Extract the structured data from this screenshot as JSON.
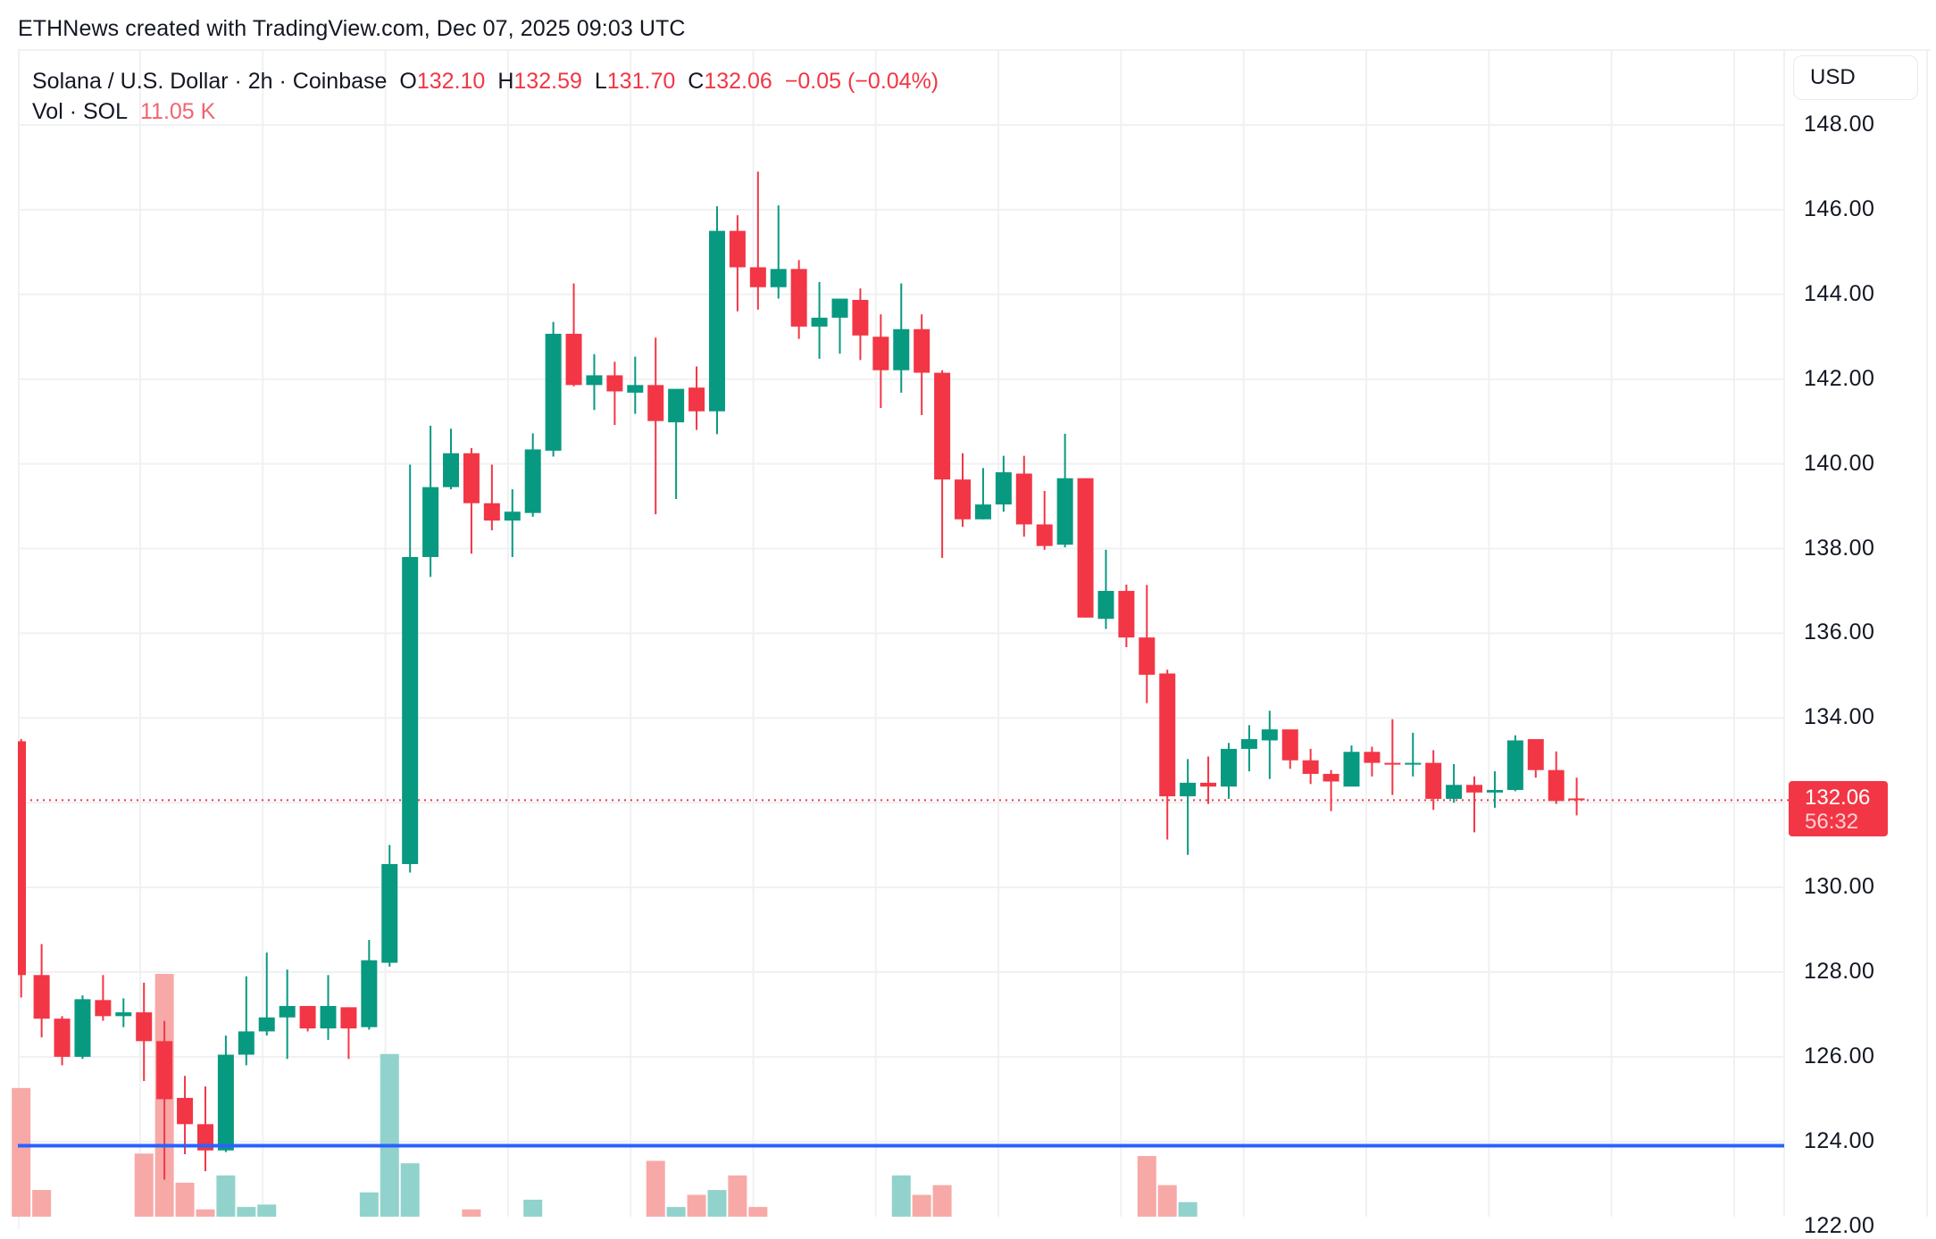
{
  "credit": "ETHNews created with TradingView.com, Dec 07, 2025 09:03 UTC",
  "legend": {
    "symbol": "Solana / U.S. Dollar · 2h · Coinbase",
    "o_label": "O",
    "o_value": "132.10",
    "h_label": "H",
    "h_value": "132.59",
    "l_label": "L",
    "l_value": "131.70",
    "c_label": "C",
    "c_value": "132.06",
    "change": "−0.05 (−0.04%)",
    "vol_label": "Vol · SOL",
    "vol_value": "11.05 K"
  },
  "axis": {
    "currency": "USD",
    "ticks": [
      "148.00",
      "146.00",
      "144.00",
      "142.00",
      "140.00",
      "138.00",
      "136.00",
      "134.00",
      "130.00",
      "128.00",
      "126.00",
      "124.00",
      "122.00"
    ]
  },
  "last_price_tag": {
    "price": "132.06",
    "countdown": "56:32"
  },
  "colors": {
    "up": "#089981",
    "down": "#f23645",
    "up_vol": "#92d2cc",
    "down_vol": "#f7a9a7",
    "hline": "#2962ff",
    "grid": "#f0f1f3"
  },
  "chart_data": {
    "type": "candlestick",
    "title": "Solana / U.S. Dollar · 2h · Coinbase",
    "xlabel": "",
    "ylabel": "USD",
    "ylim": [
      122,
      149.2
    ],
    "grid": true,
    "horizontal_line": 123.9,
    "last_price_line": 132.06,
    "columns": [
      "open",
      "high",
      "low",
      "close",
      "volume_rel"
    ],
    "candles": [
      [
        133.45,
        133.5,
        127.4,
        127.93,
        0.53
      ],
      [
        127.93,
        128.66,
        126.46,
        126.9,
        0.11
      ],
      [
        126.9,
        126.96,
        125.8,
        126.0,
        0
      ],
      [
        126.0,
        127.45,
        125.95,
        127.36,
        0
      ],
      [
        127.34,
        127.93,
        126.85,
        126.96,
        0
      ],
      [
        126.96,
        127.38,
        126.7,
        127.05,
        0
      ],
      [
        127.05,
        127.75,
        125.43,
        126.37,
        0.26
      ],
      [
        126.37,
        126.85,
        123.1,
        125.0,
        1.0
      ],
      [
        125.03,
        125.55,
        123.7,
        124.41,
        0.14
      ],
      [
        124.41,
        125.3,
        123.3,
        123.79,
        0.03
      ],
      [
        123.79,
        126.5,
        123.75,
        126.05,
        0.17
      ],
      [
        126.05,
        127.9,
        125.8,
        126.6,
        0.04
      ],
      [
        126.6,
        128.46,
        126.5,
        126.93,
        0.05
      ],
      [
        126.93,
        128.06,
        125.95,
        127.2,
        0
      ],
      [
        127.2,
        127.17,
        126.6,
        126.67,
        0
      ],
      [
        126.67,
        127.93,
        126.4,
        127.2,
        0
      ],
      [
        127.17,
        127.17,
        125.95,
        126.67,
        0
      ],
      [
        126.7,
        128.76,
        126.64,
        128.28,
        0.1
      ],
      [
        128.22,
        131.0,
        128.13,
        130.55,
        0.67
      ],
      [
        130.55,
        139.98,
        130.35,
        137.8,
        0.22
      ],
      [
        137.8,
        140.9,
        137.33,
        139.45,
        0
      ],
      [
        139.45,
        140.83,
        139.4,
        140.25,
        0
      ],
      [
        140.25,
        140.37,
        137.88,
        139.07,
        0.03
      ],
      [
        139.07,
        139.98,
        138.43,
        138.66,
        0
      ],
      [
        138.66,
        139.4,
        137.8,
        138.87,
        0
      ],
      [
        138.84,
        140.72,
        138.75,
        140.34,
        0.07
      ],
      [
        140.31,
        143.35,
        140.17,
        143.07,
        0
      ],
      [
        143.07,
        144.26,
        141.83,
        141.86,
        0
      ],
      [
        141.86,
        142.59,
        141.27,
        142.09,
        0
      ],
      [
        142.09,
        142.41,
        140.92,
        141.71,
        0
      ],
      [
        141.68,
        142.53,
        141.18,
        141.86,
        0
      ],
      [
        141.86,
        142.98,
        138.81,
        141.01,
        0.23
      ],
      [
        140.98,
        141.36,
        139.17,
        141.77,
        0.04
      ],
      [
        141.8,
        142.3,
        140.8,
        141.24,
        0.09
      ],
      [
        141.24,
        146.08,
        140.7,
        145.5,
        0.11
      ],
      [
        145.5,
        145.87,
        143.6,
        144.64,
        0.17
      ],
      [
        144.64,
        146.9,
        143.64,
        144.17,
        0.04
      ],
      [
        144.17,
        146.1,
        143.9,
        144.6,
        0
      ],
      [
        144.6,
        144.81,
        142.95,
        143.24,
        0
      ],
      [
        143.24,
        144.29,
        142.48,
        143.45,
        0
      ],
      [
        143.45,
        143.8,
        142.6,
        143.9,
        0
      ],
      [
        143.87,
        144.14,
        142.45,
        143.03,
        0
      ],
      [
        143.0,
        143.53,
        141.32,
        142.21,
        0
      ],
      [
        142.21,
        144.26,
        141.68,
        143.18,
        0.17
      ],
      [
        143.18,
        143.53,
        141.15,
        142.15,
        0.09
      ],
      [
        142.15,
        142.21,
        137.78,
        139.63,
        0.13
      ],
      [
        139.63,
        140.25,
        138.51,
        138.69,
        0
      ],
      [
        138.69,
        139.9,
        138.69,
        139.04,
        0
      ],
      [
        139.04,
        140.19,
        138.87,
        139.8,
        0
      ],
      [
        139.77,
        140.19,
        138.28,
        138.57,
        0
      ],
      [
        138.57,
        139.36,
        137.97,
        138.06,
        0
      ],
      [
        138.09,
        140.71,
        138.03,
        139.66,
        0
      ],
      [
        139.66,
        139.66,
        136.37,
        136.37,
        0
      ],
      [
        136.34,
        137.97,
        136.1,
        137.0,
        0
      ],
      [
        137.0,
        137.15,
        135.67,
        135.9,
        0
      ],
      [
        135.9,
        137.14,
        134.35,
        135.02,
        0.25
      ],
      [
        135.05,
        135.14,
        131.13,
        132.15,
        0.13
      ],
      [
        132.15,
        133.03,
        130.77,
        132.47,
        0.06
      ],
      [
        132.47,
        133.09,
        131.97,
        132.38,
        0
      ],
      [
        132.38,
        133.41,
        132.09,
        133.27,
        0
      ],
      [
        133.27,
        133.83,
        132.74,
        133.5,
        0
      ],
      [
        133.47,
        134.17,
        132.56,
        133.73,
        0
      ],
      [
        133.73,
        133.7,
        132.8,
        133.0,
        0
      ],
      [
        133.0,
        133.27,
        132.44,
        132.68,
        0
      ],
      [
        132.68,
        132.77,
        131.8,
        132.5,
        0
      ],
      [
        132.38,
        133.35,
        132.41,
        133.2,
        0
      ],
      [
        133.2,
        133.32,
        132.62,
        132.94,
        0
      ],
      [
        132.94,
        133.97,
        132.18,
        132.91,
        0
      ],
      [
        132.91,
        133.65,
        132.62,
        132.94,
        0
      ],
      [
        132.94,
        133.24,
        131.83,
        132.09,
        0
      ],
      [
        132.09,
        132.91,
        132.0,
        132.42,
        0
      ],
      [
        132.42,
        132.62,
        131.3,
        132.24,
        0
      ],
      [
        132.24,
        132.74,
        131.88,
        132.3,
        0
      ],
      [
        132.3,
        133.59,
        132.27,
        133.47,
        0
      ],
      [
        133.5,
        133.5,
        132.59,
        132.77,
        0
      ],
      [
        132.77,
        133.21,
        131.97,
        132.04,
        0
      ],
      [
        132.1,
        132.59,
        131.7,
        132.06,
        0
      ]
    ]
  }
}
